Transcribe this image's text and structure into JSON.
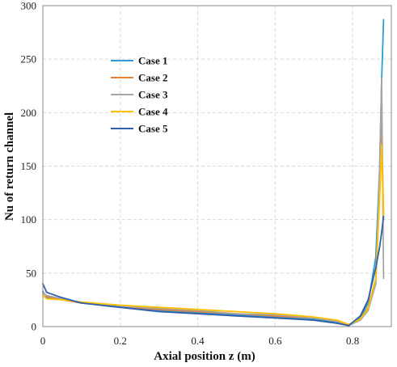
{
  "chart_data": {
    "type": "line",
    "title": "",
    "xlabel": "Axial position z (m)",
    "ylabel": "Nu of return channel",
    "xlim": [
      0,
      0.9
    ],
    "ylim": [
      0,
      300
    ],
    "xticks": [
      0,
      0.2,
      0.4,
      0.6,
      0.8
    ],
    "xtick_labels": [
      "0",
      "0.2",
      "0.4",
      "0.6",
      "0.8"
    ],
    "yticks": [
      0,
      50,
      100,
      150,
      200,
      250,
      300
    ],
    "ytick_labels": [
      "0",
      "50",
      "100",
      "150",
      "200",
      "250",
      "300"
    ],
    "grid": true,
    "legend_position": "upper-left",
    "series": [
      {
        "name": "Case 1",
        "color": "#2E9BD6",
        "x": [
          0,
          0.01,
          0.05,
          0.1,
          0.2,
          0.3,
          0.4,
          0.5,
          0.6,
          0.7,
          0.76,
          0.79,
          0.82,
          0.84,
          0.86,
          0.87,
          0.875,
          0.88
        ],
        "y": [
          33,
          27,
          25,
          22,
          18,
          15,
          13,
          11,
          9,
          7,
          4,
          1,
          8,
          22,
          65,
          150,
          230,
          287
        ]
      },
      {
        "name": "Case 2",
        "color": "#ED7D31",
        "x": [
          0,
          0.01,
          0.05,
          0.1,
          0.2,
          0.3,
          0.4,
          0.5,
          0.6,
          0.7,
          0.76,
          0.79,
          0.82,
          0.84,
          0.86,
          0.87,
          0.875,
          0.88
        ],
        "y": [
          32,
          28,
          25,
          22,
          19,
          16,
          14,
          12,
          10,
          8,
          5,
          1,
          7,
          18,
          45,
          130,
          187,
          105
        ]
      },
      {
        "name": "Case 3",
        "color": "#A5A5A5",
        "x": [
          0,
          0.01,
          0.05,
          0.1,
          0.2,
          0.3,
          0.4,
          0.5,
          0.6,
          0.7,
          0.76,
          0.79,
          0.82,
          0.84,
          0.86,
          0.87,
          0.875,
          0.88
        ],
        "y": [
          31,
          29,
          26,
          22,
          19,
          17,
          15,
          12,
          11,
          8,
          5,
          1,
          6,
          15,
          40,
          150,
          232,
          45
        ]
      },
      {
        "name": "Case 4",
        "color": "#FFC000",
        "x": [
          0,
          0.01,
          0.05,
          0.1,
          0.2,
          0.3,
          0.4,
          0.5,
          0.6,
          0.7,
          0.76,
          0.79,
          0.82,
          0.84,
          0.86,
          0.87,
          0.875,
          0.88
        ],
        "y": [
          29,
          26,
          25,
          23,
          20,
          18,
          16,
          14,
          12,
          9,
          6,
          2,
          7,
          17,
          45,
          120,
          170,
          100
        ]
      },
      {
        "name": "Case 5",
        "color": "#2F5FA8",
        "x": [
          0,
          0.01,
          0.05,
          0.1,
          0.2,
          0.3,
          0.4,
          0.5,
          0.6,
          0.7,
          0.76,
          0.79,
          0.82,
          0.84,
          0.86,
          0.87,
          0.875,
          0.88
        ],
        "y": [
          40,
          32,
          27,
          22,
          18,
          14,
          12,
          10,
          8,
          6,
          3,
          1,
          10,
          25,
          55,
          75,
          88,
          103
        ]
      }
    ]
  }
}
